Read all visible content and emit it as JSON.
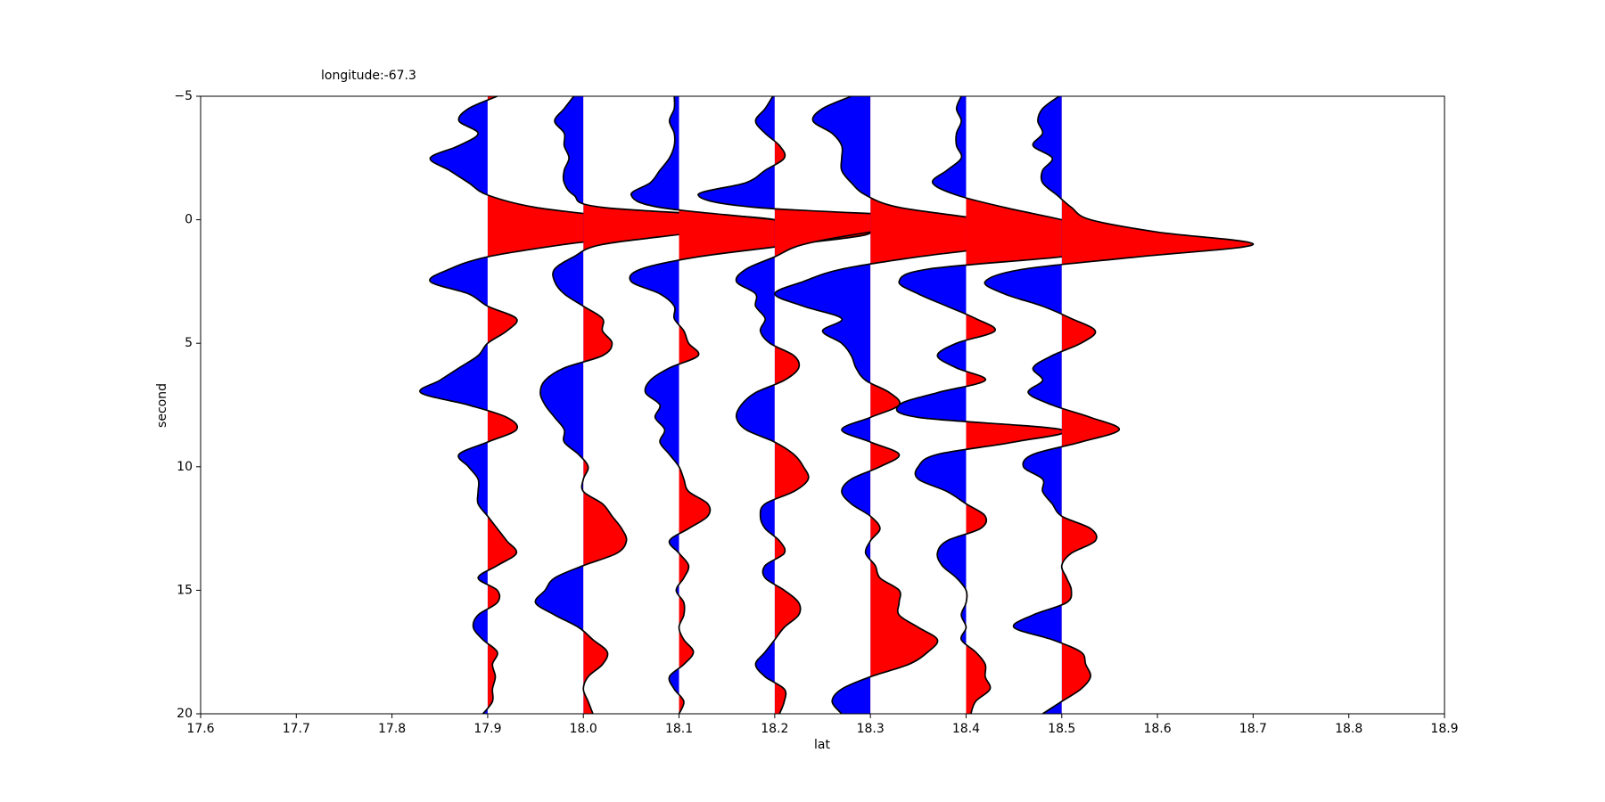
{
  "chart_data": {
    "type": "wiggle",
    "title": "longitude:-67.3",
    "xlabel": "lat",
    "ylabel": "second",
    "xlim": [
      17.6,
      18.9
    ],
    "xticks": [
      17.6,
      17.7,
      17.8,
      17.9,
      {
        "value": 18.0,
        "label": "18.0"
      },
      18.1,
      18.2,
      18.3,
      18.4,
      18.5,
      18.6,
      18.7,
      18.8,
      18.9
    ],
    "ylim": [
      -5,
      20
    ],
    "yticks": [
      {
        "value": -5,
        "label": "−5"
      },
      0,
      5,
      10,
      15,
      20
    ],
    "y_inverted": true,
    "positive_color": "#ff0000",
    "negative_color": "#0000ff",
    "y": [
      -5,
      -4.5,
      -4,
      -3.5,
      -3,
      -2.5,
      -2,
      -1.5,
      -1,
      -0.5,
      0,
      0.5,
      1,
      1.5,
      2,
      2.5,
      3,
      3.5,
      4,
      4.5,
      5,
      5.5,
      6,
      6.5,
      7,
      7.5,
      8,
      8.5,
      9,
      9.5,
      10,
      10.5,
      11,
      11.5,
      12,
      12.5,
      13,
      13.5,
      14,
      14.5,
      15,
      15.5,
      16,
      16.5,
      17,
      17.5,
      18,
      18.5,
      19,
      19.5,
      20
    ],
    "series": [
      {
        "x0": 17.9,
        "values": [
          0.01,
          -0.02,
          -0.03,
          -0.01,
          -0.03,
          -0.06,
          -0.04,
          -0.02,
          0,
          0.05,
          0.15,
          0.18,
          0.08,
          0,
          -0.04,
          -0.06,
          -0.02,
          0,
          0.03,
          0.02,
          0,
          -0.01,
          -0.03,
          -0.05,
          -0.07,
          -0.02,
          0.02,
          0.03,
          0,
          -0.03,
          -0.02,
          -0.01,
          -0.01,
          -0.01,
          0,
          0.01,
          0.02,
          0.03,
          0.01,
          -0.01,
          0.01,
          0.01,
          -0.01,
          -0.015,
          -0.005,
          0.01,
          0.005,
          0.008,
          0.005,
          0.005,
          -0.005
        ]
      },
      {
        "x0": 18.0,
        "values": [
          -0.01,
          -0.02,
          -0.03,
          -0.02,
          -0.02,
          -0.015,
          -0.02,
          -0.02,
          -0.01,
          0.02,
          0.2,
          0.12,
          0.02,
          -0.01,
          -0.03,
          -0.03,
          -0.02,
          0,
          0.02,
          0.02,
          0.03,
          0.02,
          -0.02,
          -0.04,
          -0.045,
          -0.04,
          -0.03,
          -0.02,
          -0.02,
          -0.005,
          0.005,
          0,
          0,
          0.02,
          0.03,
          0.04,
          0.045,
          0.035,
          0,
          -0.03,
          -0.04,
          -0.05,
          -0.03,
          -0.005,
          0.01,
          0.025,
          0.02,
          0.005,
          0,
          0.005,
          0.01
        ]
      },
      {
        "x0": 18.1,
        "values": [
          -0.005,
          -0.005,
          -0.01,
          -0.005,
          -0.005,
          -0.01,
          -0.02,
          -0.03,
          -0.05,
          -0.02,
          0.1,
          0.2,
          0.12,
          0.02,
          -0.04,
          -0.05,
          -0.02,
          -0.005,
          -0.005,
          0.005,
          0.01,
          0.02,
          -0.01,
          -0.03,
          -0.035,
          -0.02,
          -0.025,
          -0.015,
          -0.02,
          -0.01,
          0,
          0.005,
          0.01,
          0.03,
          0.03,
          0.01,
          -0.01,
          0,
          0.01,
          0.005,
          -0.003,
          0.005,
          0.005,
          0,
          0.005,
          0.015,
          0.005,
          -0.01,
          -0.005,
          0.005,
          0
        ]
      },
      {
        "x0": 18.2,
        "values": [
          -0.002,
          -0.01,
          -0.02,
          -0.01,
          0.005,
          0.01,
          -0.01,
          -0.03,
          -0.08,
          -0.02,
          0.2,
          0.1,
          0.03,
          0,
          -0.03,
          -0.04,
          -0.02,
          -0.02,
          -0.01,
          -0.015,
          -0.005,
          0.02,
          0.025,
          0.01,
          -0.02,
          -0.035,
          -0.04,
          -0.03,
          0,
          0.02,
          0.03,
          0.035,
          0.02,
          -0.01,
          -0.015,
          -0.01,
          0.005,
          0.01,
          -0.01,
          -0.01,
          0.01,
          0.025,
          0.025,
          0.01,
          0,
          -0.01,
          -0.02,
          -0.01,
          0.01,
          0.01,
          0.005
        ]
      },
      {
        "x0": 18.3,
        "values": [
          -0.02,
          -0.05,
          -0.06,
          -0.04,
          -0.03,
          -0.03,
          -0.03,
          -0.02,
          -0.005,
          0.03,
          0.12,
          0.18,
          0.15,
          0.05,
          -0.03,
          -0.07,
          -0.1,
          -0.07,
          -0.03,
          -0.05,
          -0.03,
          -0.02,
          -0.015,
          -0.005,
          0.02,
          0.03,
          0,
          -0.03,
          0,
          0.03,
          0.01,
          -0.02,
          -0.03,
          -0.02,
          0,
          0.01,
          0,
          -0.005,
          0.005,
          0.01,
          0.03,
          0.03,
          0.03,
          0.05,
          0.07,
          0.06,
          0.04,
          0,
          -0.03,
          -0.04,
          -0.03
        ]
      },
      {
        "x0": 18.4,
        "values": [
          -0.005,
          -0.01,
          -0.005,
          -0.01,
          -0.01,
          -0.005,
          -0.02,
          -0.035,
          -0.01,
          0.04,
          0.1,
          0.15,
          0.2,
          0.1,
          -0.04,
          -0.07,
          -0.05,
          -0.02,
          0.01,
          0.03,
          -0.01,
          -0.03,
          -0.01,
          0.02,
          -0.03,
          -0.07,
          -0.05,
          0.1,
          0.05,
          -0.03,
          -0.05,
          -0.05,
          -0.02,
          0,
          0.02,
          0.015,
          -0.02,
          -0.03,
          -0.025,
          -0.01,
          0,
          0,
          -0.005,
          0,
          -0.005,
          0.01,
          0.02,
          0.02,
          0.025,
          0.01,
          0.005
        ]
      },
      {
        "x0": 18.5,
        "values": [
          -0.003,
          -0.02,
          -0.025,
          -0.02,
          -0.03,
          -0.01,
          -0.02,
          -0.02,
          -0.005,
          0.01,
          0.03,
          0.1,
          0.2,
          0.08,
          -0.04,
          -0.08,
          -0.06,
          -0.02,
          0.01,
          0.035,
          0.02,
          -0.01,
          -0.03,
          -0.02,
          -0.035,
          -0.01,
          0.03,
          0.06,
          0.02,
          -0.03,
          -0.04,
          -0.02,
          -0.02,
          -0.01,
          0,
          0.03,
          0.035,
          0.01,
          0,
          0.005,
          0.01,
          0.005,
          -0.03,
          -0.05,
          -0.01,
          0.02,
          0.025,
          0.03,
          0.02,
          0,
          -0.02
        ]
      }
    ]
  }
}
